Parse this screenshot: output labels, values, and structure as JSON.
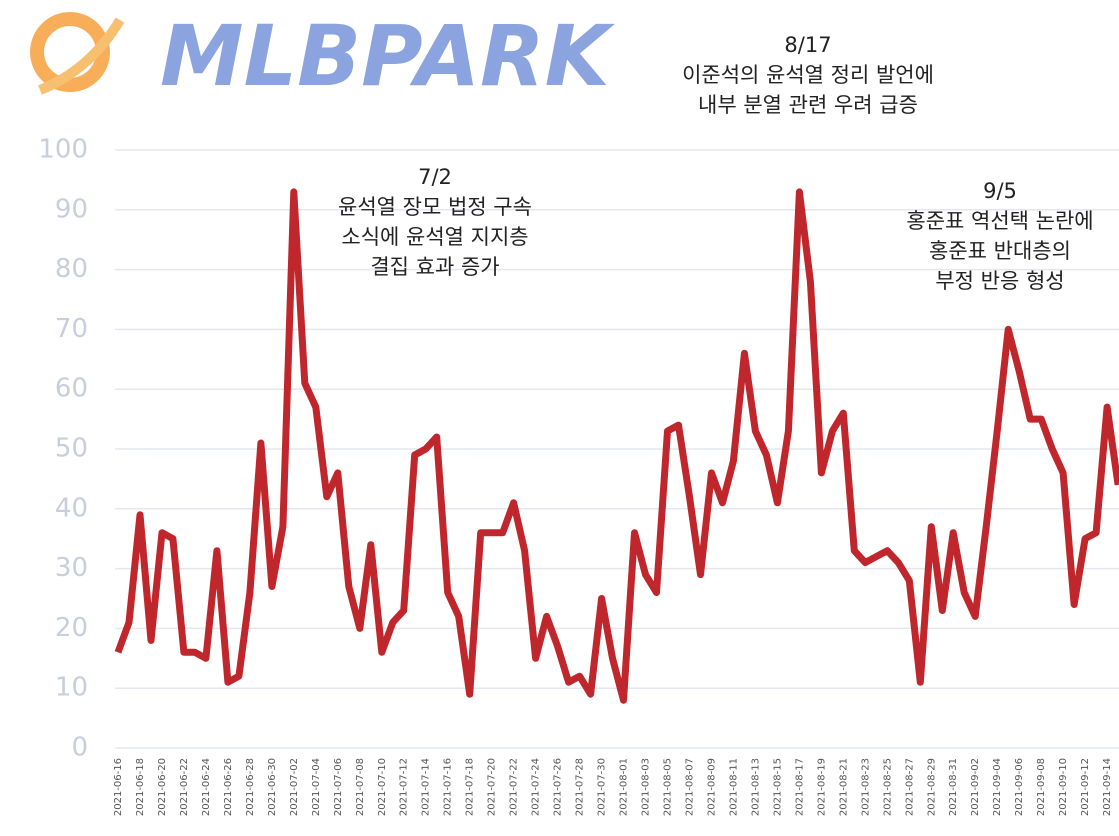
{
  "logo": "MLBPARK",
  "chart_data": {
    "type": "line",
    "annotations": [
      {
        "lines": [
          "7/2",
          "윤석열 장모 법정 구속",
          "소식에 윤석열 지지층",
          "결집 효과 증가"
        ]
      },
      {
        "lines": [
          "8/17",
          "이준석의 윤석열 정리 발언에",
          "내부 분열 관련 우려 급증"
        ]
      },
      {
        "lines": [
          "9/5",
          "홍준표 역선택 논란에",
          "홍준표 반대층의",
          "부정 반응 형성"
        ]
      }
    ],
    "categories": [
      "2021-06-16",
      null,
      "2021-06-18",
      null,
      "2021-06-20",
      null,
      "2021-06-22",
      null,
      "2021-06-24",
      null,
      "2021-06-26",
      null,
      "2021-06-28",
      null,
      "2021-06-30",
      null,
      "2021-07-02",
      null,
      "2021-07-04",
      null,
      "2021-07-06",
      null,
      "2021-07-08",
      null,
      "2021-07-10",
      null,
      "2021-07-12",
      null,
      "2021-07-14",
      null,
      "2021-07-16",
      null,
      "2021-07-18",
      null,
      "2021-07-20",
      null,
      "2021-07-22",
      null,
      "2021-07-24",
      null,
      "2021-07-26",
      null,
      "2021-07-28",
      null,
      "2021-07-30",
      null,
      "2021-08-01",
      null,
      "2021-08-03",
      null,
      "2021-08-05",
      null,
      "2021-08-07",
      null,
      "2021-08-09",
      null,
      "2021-08-11",
      null,
      "2021-08-13",
      null,
      "2021-08-15",
      null,
      "2021-08-17",
      null,
      "2021-08-19",
      null,
      "2021-08-21",
      null,
      "2021-08-23",
      null,
      "2021-08-25",
      null,
      "2021-08-27",
      null,
      "2021-08-29",
      null,
      "2021-08-31",
      null,
      "2021-09-02",
      null,
      "2021-09-04",
      null,
      "2021-09-06",
      null,
      "2021-09-08",
      null,
      "2021-09-10",
      null,
      "2021-09-12",
      null,
      "2021-09-14",
      null
    ],
    "series": [
      {
        "color": "#c0272d",
        "values": [
          16,
          21,
          39,
          18,
          36,
          35,
          16,
          16,
          15,
          33,
          11,
          12,
          26,
          51,
          27,
          37,
          93,
          61,
          57,
          42,
          46,
          27,
          20,
          34,
          16,
          21,
          23,
          49,
          50,
          52,
          26,
          22,
          9,
          36,
          36,
          36,
          41,
          33,
          15,
          22,
          17,
          11,
          12,
          9,
          25,
          15,
          8,
          36,
          29,
          26,
          53,
          54,
          42,
          29,
          46,
          41,
          48,
          66,
          53,
          49,
          41,
          53,
          93,
          78,
          46,
          53,
          56,
          33,
          31,
          32,
          33,
          31,
          28,
          11,
          37,
          23,
          36,
          26,
          22,
          37,
          53,
          70,
          63,
          55,
          55,
          50,
          46,
          24,
          35,
          36,
          57,
          44
        ]
      }
    ],
    "ylim": [
      0,
      100
    ],
    "yticks": [
      0,
      10,
      20,
      30,
      40,
      50,
      60,
      70,
      80,
      90,
      100
    ],
    "grid": true
  }
}
